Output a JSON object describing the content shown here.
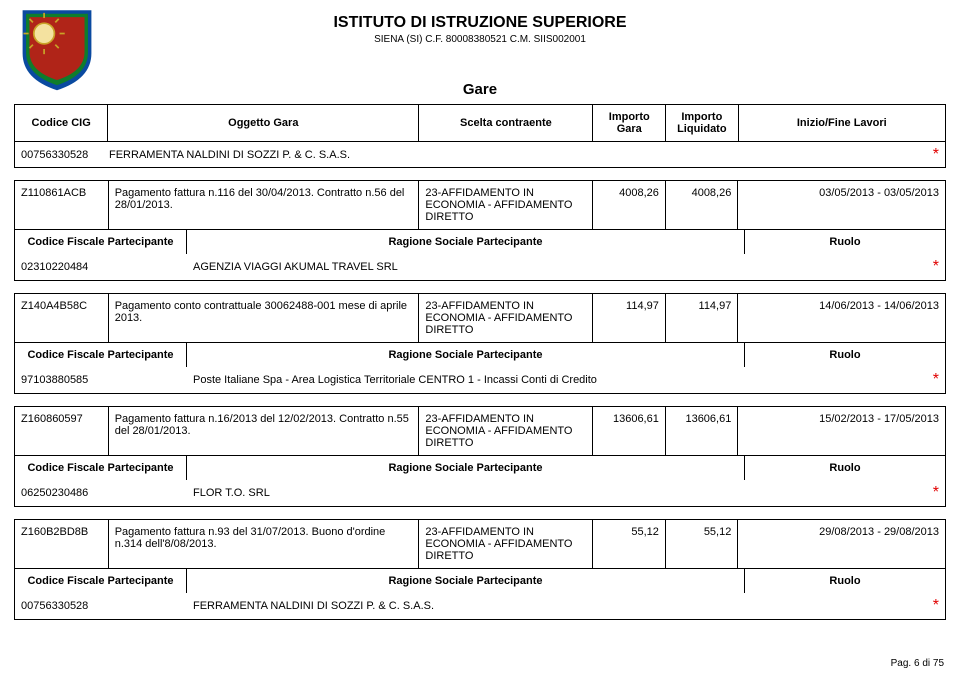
{
  "header": {
    "institute": "ISTITUTO DI ISTRUZIONE SUPERIORE",
    "subtitle": "SIENA (SI) C.F. 80008380521 C.M. SIIS002001"
  },
  "section_title": "Gare",
  "table_headers": {
    "cig": "Codice CIG",
    "ogg": "Oggetto Gara",
    "sce": "Scelta contraente",
    "ig": "Importo Gara",
    "il": "Importo Liquidato",
    "ini": "Inizio/Fine Lavori"
  },
  "top_supplier": {
    "code": "00756330528",
    "name": "FERRAMENTA NALDINI DI SOZZI P. & C. S.A.S."
  },
  "part_labels": {
    "cf": "Codice Fiscale Partecipante",
    "rs": "Ragione Sociale Partecipante",
    "ruolo": "Ruolo"
  },
  "entries": [
    {
      "cig": "Z110861ACB",
      "ogg": "Pagamento fattura n.116 del 30/04/2013. Contratto n.56 del 28/01/2013.",
      "sce": "23-AFFIDAMENTO IN ECONOMIA - AFFIDAMENTO DIRETTO",
      "ig": "4008,26",
      "il": "4008,26",
      "date": "03/05/2013 - 03/05/2013",
      "part": {
        "cf": "02310220484",
        "rs": "AGENZIA VIAGGI AKUMAL TRAVEL SRL"
      }
    },
    {
      "cig": "Z140A4B58C",
      "ogg": "Pagamento conto contrattuale 30062488-001 mese di aprile 2013.",
      "sce": "23-AFFIDAMENTO IN ECONOMIA - AFFIDAMENTO DIRETTO",
      "ig": "114,97",
      "il": "114,97",
      "date": "14/06/2013 - 14/06/2013",
      "part": {
        "cf": "97103880585",
        "rs": "Poste Italiane Spa - Area Logistica Territoriale CENTRO 1 - Incassi Conti di Credito"
      }
    },
    {
      "cig": "Z160860597",
      "ogg": "Pagamento fattura n.16/2013 del 12/02/2013. Contratto n.55 del 28/01/2013.",
      "sce": "23-AFFIDAMENTO IN ECONOMIA - AFFIDAMENTO DIRETTO",
      "ig": "13606,61",
      "il": "13606,61",
      "date": "15/02/2013 - 17/05/2013",
      "part": {
        "cf": "06250230486",
        "rs": "FLOR T.O. SRL"
      }
    },
    {
      "cig": "Z160B2BD8B",
      "ogg": "Pagamento fattura n.93 del 31/07/2013. Buono d'ordine n.314 dell'8/08/2013.",
      "sce": "23-AFFIDAMENTO IN ECONOMIA - AFFIDAMENTO DIRETTO",
      "ig": "55,12",
      "il": "55,12",
      "date": "29/08/2013 - 29/08/2013",
      "part": {
        "cf": "00756330528",
        "rs": "FERRAMENTA NALDINI DI SOZZI P. & C. S.A.S."
      }
    }
  ],
  "page_label": "Pag. 6 di 75",
  "star": "*",
  "colors": {
    "text": "#000000",
    "star": "#e00000",
    "emblem_gold": "#c9a227",
    "emblem_red": "#b02418",
    "emblem_blue": "#0a4aa0",
    "emblem_green": "#0f7d2c"
  }
}
